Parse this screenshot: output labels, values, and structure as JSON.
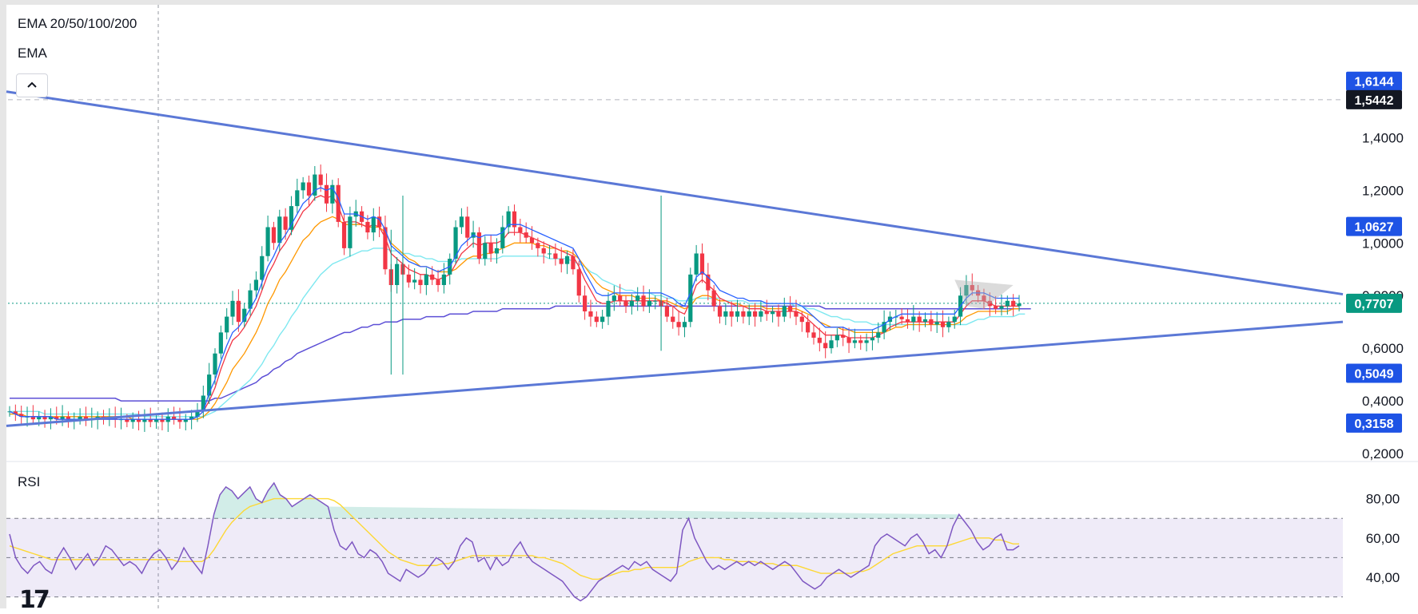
{
  "legend": {
    "indicator": "EMA 20/50/100/200",
    "sub": "EMA",
    "rsi": "RSI"
  },
  "icons": {
    "collapse": "chevron-up-icon",
    "logo": "tradingview-logo"
  },
  "colors": {
    "up": "#089981",
    "down": "#f23645",
    "ema20": "#2962ff",
    "ema50": "#f23645",
    "ema100": "#ff9800",
    "ema200a": "#7ee8f0",
    "ema200b": "#5c4fd6",
    "trendline": "#5b78d6",
    "rsi": "#7e57c2",
    "rsi_ma": "#fdd835"
  },
  "chart_data": [
    {
      "type": "candlestick",
      "title": "",
      "ylim": [
        0.2,
        1.65
      ],
      "yticks": [
        "1,4000",
        "1,2000",
        "1,0000",
        "0,8000",
        "0,6000",
        "0,4000",
        "0,2000"
      ],
      "ytick_values": [
        1.4,
        1.2,
        1.0,
        0.8,
        0.6,
        0.4,
        0.2
      ],
      "price_labels": [
        {
          "text": "1,6144",
          "value": 1.6144,
          "bg": "#1e53e5"
        },
        {
          "text": "1,5442",
          "value": 1.5442,
          "bg": "#131722"
        },
        {
          "text": "1,0627",
          "value": 1.0627,
          "bg": "#1e53e5"
        },
        {
          "text": "0,7707",
          "value": 0.7707,
          "bg": "#089981"
        },
        {
          "text": "0,5049",
          "value": 0.5049,
          "bg": "#1e53e5"
        },
        {
          "text": "0,3158",
          "value": 0.3158,
          "bg": "#1e53e5"
        }
      ],
      "close_series": [
        0.36,
        0.35,
        0.34,
        0.34,
        0.33,
        0.34,
        0.33,
        0.34,
        0.33,
        0.34,
        0.33,
        0.33,
        0.34,
        0.33,
        0.33,
        0.34,
        0.33,
        0.34,
        0.33,
        0.33,
        0.32,
        0.33,
        0.32,
        0.33,
        0.32,
        0.33,
        0.32,
        0.34,
        0.33,
        0.32,
        0.33,
        0.34,
        0.36,
        0.42,
        0.5,
        0.58,
        0.66,
        0.72,
        0.78,
        0.7,
        0.75,
        0.82,
        0.86,
        0.95,
        1.06,
        1.0,
        1.1,
        1.05,
        1.14,
        1.2,
        1.23,
        1.18,
        1.26,
        1.22,
        1.15,
        1.22,
        1.08,
        0.98,
        1.1,
        1.12,
        1.08,
        1.04,
        1.1,
        1.06,
        0.9,
        0.84,
        0.92,
        0.88,
        0.85,
        0.86,
        0.84,
        0.88,
        0.86,
        0.84,
        0.88,
        0.94,
        1.06,
        1.1,
        1.02,
        1.04,
        0.94,
        1.0,
        0.96,
        0.98,
        1.06,
        1.12,
        1.06,
        1.04,
        1.02,
        1.0,
        0.98,
        0.96,
        0.96,
        0.94,
        0.92,
        0.95,
        0.9,
        0.8,
        0.74,
        0.72,
        0.7,
        0.72,
        0.78,
        0.8,
        0.78,
        0.76,
        0.78,
        0.8,
        0.76,
        0.78,
        0.78,
        0.76,
        0.72,
        0.7,
        0.68,
        0.7,
        0.88,
        0.96,
        0.88,
        0.82,
        0.76,
        0.72,
        0.74,
        0.72,
        0.74,
        0.72,
        0.74,
        0.72,
        0.74,
        0.73,
        0.74,
        0.72,
        0.76,
        0.74,
        0.72,
        0.7,
        0.66,
        0.64,
        0.62,
        0.6,
        0.63,
        0.65,
        0.64,
        0.62,
        0.63,
        0.62,
        0.63,
        0.64,
        0.66,
        0.7,
        0.72,
        0.72,
        0.71,
        0.7,
        0.72,
        0.7,
        0.71,
        0.69,
        0.7,
        0.68,
        0.7,
        0.72,
        0.8,
        0.84,
        0.82,
        0.8,
        0.78,
        0.76,
        0.75,
        0.76,
        0.78,
        0.76,
        0.77
      ],
      "ema_fast": [
        0.36,
        0.35,
        0.34,
        0.34,
        0.34,
        0.34,
        0.34,
        0.34,
        0.33,
        0.33,
        0.33,
        0.33,
        0.33,
        0.33,
        0.33,
        0.33,
        0.33,
        0.33,
        0.33,
        0.33,
        0.33,
        0.33,
        0.33,
        0.33,
        0.33,
        0.33,
        0.33,
        0.33,
        0.33,
        0.33,
        0.33,
        0.33,
        0.34,
        0.36,
        0.4,
        0.45,
        0.52,
        0.58,
        0.63,
        0.65,
        0.68,
        0.72,
        0.76,
        0.82,
        0.88,
        0.92,
        0.97,
        1.0,
        1.04,
        1.08,
        1.12,
        1.14,
        1.17,
        1.18,
        1.17,
        1.18,
        1.14,
        1.08,
        1.08,
        1.08,
        1.07,
        1.06,
        1.07,
        1.06,
        1.02,
        0.96,
        0.94,
        0.92,
        0.9,
        0.89,
        0.88,
        0.88,
        0.87,
        0.86,
        0.87,
        0.88,
        0.92,
        0.96,
        0.98,
        1.0,
        0.99,
        1.0,
        1.0,
        1.0,
        1.01,
        1.04,
        1.04,
        1.04,
        1.03,
        1.02,
        1.01,
        1.0,
        0.99,
        0.98,
        0.97,
        0.96,
        0.95,
        0.91,
        0.86,
        0.82,
        0.78,
        0.77,
        0.77,
        0.78,
        0.78,
        0.78,
        0.78,
        0.78,
        0.78,
        0.78,
        0.78,
        0.78,
        0.77,
        0.76,
        0.74,
        0.73,
        0.78,
        0.84,
        0.86,
        0.84,
        0.82,
        0.79,
        0.78,
        0.77,
        0.76,
        0.76,
        0.75,
        0.75,
        0.75,
        0.74,
        0.74,
        0.74,
        0.74,
        0.74,
        0.74,
        0.73,
        0.71,
        0.69,
        0.67,
        0.65,
        0.65,
        0.65,
        0.65,
        0.64,
        0.64,
        0.64,
        0.64,
        0.64,
        0.65,
        0.66,
        0.68,
        0.69,
        0.7,
        0.7,
        0.7,
        0.7,
        0.7,
        0.7,
        0.7,
        0.7,
        0.7,
        0.7,
        0.73,
        0.76,
        0.78,
        0.78,
        0.78,
        0.77,
        0.76,
        0.76,
        0.76,
        0.76,
        0.76
      ],
      "ema_mid": [
        0.35,
        0.35,
        0.35,
        0.34,
        0.34,
        0.34,
        0.34,
        0.34,
        0.34,
        0.34,
        0.34,
        0.34,
        0.34,
        0.34,
        0.34,
        0.34,
        0.34,
        0.34,
        0.34,
        0.34,
        0.34,
        0.33,
        0.33,
        0.33,
        0.33,
        0.33,
        0.33,
        0.33,
        0.33,
        0.33,
        0.33,
        0.33,
        0.33,
        0.34,
        0.36,
        0.39,
        0.43,
        0.47,
        0.52,
        0.55,
        0.58,
        0.62,
        0.66,
        0.71,
        0.77,
        0.81,
        0.86,
        0.89,
        0.93,
        0.97,
        1.01,
        1.03,
        1.06,
        1.08,
        1.09,
        1.1,
        1.09,
        1.07,
        1.07,
        1.07,
        1.07,
        1.06,
        1.06,
        1.06,
        1.04,
        1.0,
        0.98,
        0.96,
        0.94,
        0.93,
        0.91,
        0.91,
        0.9,
        0.89,
        0.89,
        0.89,
        0.9,
        0.92,
        0.94,
        0.95,
        0.95,
        0.96,
        0.96,
        0.97,
        0.98,
        0.99,
        1.0,
        1.0,
        1.0,
        1.0,
        0.99,
        0.99,
        0.98,
        0.98,
        0.97,
        0.97,
        0.96,
        0.94,
        0.91,
        0.88,
        0.85,
        0.83,
        0.82,
        0.81,
        0.8,
        0.8,
        0.8,
        0.79,
        0.79,
        0.79,
        0.79,
        0.78,
        0.78,
        0.77,
        0.76,
        0.75,
        0.76,
        0.79,
        0.8,
        0.8,
        0.79,
        0.78,
        0.78,
        0.77,
        0.77,
        0.76,
        0.76,
        0.76,
        0.76,
        0.75,
        0.75,
        0.75,
        0.75,
        0.75,
        0.75,
        0.74,
        0.73,
        0.72,
        0.7,
        0.69,
        0.68,
        0.68,
        0.67,
        0.67,
        0.66,
        0.66,
        0.66,
        0.66,
        0.66,
        0.66,
        0.67,
        0.68,
        0.68,
        0.69,
        0.69,
        0.69,
        0.69,
        0.69,
        0.69,
        0.69,
        0.69,
        0.69,
        0.7,
        0.72,
        0.73,
        0.74,
        0.74,
        0.74,
        0.74,
        0.74,
        0.74,
        0.75,
        0.75
      ],
      "ema_slow": [
        0.36,
        0.36,
        0.36,
        0.36,
        0.36,
        0.36,
        0.35,
        0.35,
        0.35,
        0.35,
        0.35,
        0.35,
        0.35,
        0.35,
        0.35,
        0.35,
        0.35,
        0.35,
        0.35,
        0.35,
        0.35,
        0.35,
        0.35,
        0.34,
        0.34,
        0.34,
        0.34,
        0.34,
        0.34,
        0.34,
        0.34,
        0.34,
        0.34,
        0.34,
        0.35,
        0.36,
        0.38,
        0.4,
        0.42,
        0.44,
        0.46,
        0.48,
        0.51,
        0.54,
        0.58,
        0.61,
        0.65,
        0.68,
        0.72,
        0.75,
        0.79,
        0.82,
        0.85,
        0.88,
        0.9,
        0.92,
        0.93,
        0.94,
        0.95,
        0.96,
        0.97,
        0.97,
        0.98,
        0.98,
        0.98,
        0.97,
        0.97,
        0.96,
        0.96,
        0.95,
        0.95,
        0.94,
        0.94,
        0.93,
        0.93,
        0.93,
        0.93,
        0.94,
        0.94,
        0.94,
        0.94,
        0.94,
        0.94,
        0.94,
        0.95,
        0.95,
        0.95,
        0.95,
        0.95,
        0.95,
        0.95,
        0.95,
        0.94,
        0.94,
        0.94,
        0.94,
        0.93,
        0.92,
        0.91,
        0.89,
        0.88,
        0.86,
        0.85,
        0.84,
        0.83,
        0.82,
        0.82,
        0.81,
        0.81,
        0.81,
        0.8,
        0.8,
        0.79,
        0.79,
        0.78,
        0.78,
        0.78,
        0.79,
        0.79,
        0.79,
        0.79,
        0.79,
        0.78,
        0.78,
        0.78,
        0.78,
        0.77,
        0.77,
        0.77,
        0.77,
        0.77,
        0.77,
        0.77,
        0.77,
        0.76,
        0.76,
        0.75,
        0.75,
        0.74,
        0.73,
        0.72,
        0.72,
        0.71,
        0.71,
        0.7,
        0.7,
        0.7,
        0.69,
        0.69,
        0.69,
        0.69,
        0.69,
        0.69,
        0.69,
        0.69,
        0.69,
        0.69,
        0.69,
        0.69,
        0.69,
        0.69,
        0.69,
        0.69,
        0.69,
        0.7,
        0.71,
        0.71,
        0.72,
        0.72,
        0.72,
        0.72,
        0.72,
        0.73,
        0.73
      ],
      "ema_long": [
        0.41,
        0.41,
        0.41,
        0.41,
        0.41,
        0.41,
        0.41,
        0.41,
        0.41,
        0.41,
        0.41,
        0.41,
        0.41,
        0.41,
        0.41,
        0.41,
        0.41,
        0.41,
        0.41,
        0.4,
        0.4,
        0.4,
        0.4,
        0.4,
        0.4,
        0.4,
        0.4,
        0.4,
        0.4,
        0.4,
        0.4,
        0.4,
        0.4,
        0.4,
        0.4,
        0.41,
        0.41,
        0.42,
        0.43,
        0.44,
        0.45,
        0.46,
        0.47,
        0.49,
        0.5,
        0.52,
        0.53,
        0.55,
        0.56,
        0.58,
        0.59,
        0.6,
        0.61,
        0.62,
        0.63,
        0.64,
        0.65,
        0.66,
        0.66,
        0.67,
        0.68,
        0.68,
        0.69,
        0.69,
        0.7,
        0.7,
        0.7,
        0.71,
        0.71,
        0.71,
        0.71,
        0.72,
        0.72,
        0.72,
        0.72,
        0.73,
        0.73,
        0.73,
        0.73,
        0.74,
        0.74,
        0.74,
        0.74,
        0.74,
        0.75,
        0.75,
        0.75,
        0.75,
        0.75,
        0.75,
        0.75,
        0.75,
        0.75,
        0.76,
        0.76,
        0.76,
        0.76,
        0.76,
        0.76,
        0.76,
        0.76,
        0.76,
        0.76,
        0.76,
        0.76,
        0.76,
        0.76,
        0.76,
        0.76,
        0.76,
        0.76,
        0.76,
        0.76,
        0.76,
        0.76,
        0.76,
        0.76,
        0.76,
        0.76,
        0.76,
        0.76,
        0.76,
        0.76,
        0.76,
        0.76,
        0.76,
        0.76,
        0.76,
        0.76,
        0.76,
        0.76,
        0.76,
        0.76,
        0.76,
        0.76,
        0.76,
        0.76,
        0.76,
        0.76,
        0.75,
        0.75,
        0.75,
        0.75,
        0.75,
        0.75,
        0.75,
        0.75,
        0.75,
        0.75,
        0.75,
        0.75,
        0.75,
        0.75,
        0.75,
        0.75,
        0.75,
        0.75,
        0.75,
        0.75,
        0.75,
        0.75,
        0.75,
        0.75,
        0.75,
        0.75,
        0.75,
        0.75,
        0.75,
        0.75,
        0.75,
        0.75,
        0.75,
        0.75,
        0.75,
        0.75
      ],
      "trendlines": [
        {
          "name": "upper",
          "from": [
            0,
            1.575
          ],
          "to": [
            1,
            0.805
          ]
        },
        {
          "name": "lower",
          "from": [
            0,
            0.305
          ],
          "to": [
            1,
            0.7
          ]
        }
      ]
    },
    {
      "type": "line",
      "title": "RSI",
      "ylim": [
        27,
        90
      ],
      "yticks": [
        "80,00",
        "60,00",
        "40,00"
      ],
      "ytick_values": [
        80,
        60,
        40
      ],
      "band": [
        30,
        70
      ],
      "midline": 50,
      "rsi": [
        62,
        50,
        45,
        42,
        46,
        48,
        44,
        42,
        50,
        55,
        50,
        44,
        48,
        52,
        46,
        50,
        56,
        54,
        50,
        46,
        48,
        46,
        42,
        48,
        52,
        54,
        50,
        44,
        48,
        55,
        50,
        46,
        42,
        56,
        72,
        82,
        86,
        84,
        80,
        83,
        86,
        80,
        78,
        84,
        88,
        82,
        80,
        76,
        78,
        80,
        82,
        80,
        78,
        76,
        64,
        56,
        54,
        58,
        52,
        50,
        54,
        52,
        48,
        42,
        40,
        38,
        44,
        42,
        40,
        42,
        46,
        50,
        48,
        44,
        48,
        56,
        60,
        58,
        48,
        50,
        44,
        50,
        46,
        48,
        54,
        58,
        52,
        48,
        46,
        44,
        42,
        40,
        38,
        34,
        30,
        28,
        30,
        34,
        38,
        40,
        42,
        44,
        46,
        44,
        48,
        46,
        48,
        44,
        42,
        40,
        38,
        42,
        64,
        70,
        60,
        54,
        48,
        44,
        46,
        44,
        46,
        48,
        46,
        48,
        46,
        48,
        46,
        44,
        46,
        48,
        46,
        42,
        38,
        36,
        34,
        36,
        40,
        42,
        44,
        42,
        40,
        42,
        44,
        46,
        56,
        60,
        62,
        60,
        58,
        56,
        60,
        62,
        58,
        52,
        54,
        50,
        56,
        66,
        72,
        68,
        64,
        58,
        54,
        56,
        60,
        62,
        54,
        54,
        56
      ],
      "rsi_ma": [
        56,
        55,
        54,
        53,
        52,
        51,
        50,
        49,
        49,
        49,
        49,
        49,
        49,
        49,
        49,
        49,
        49,
        49,
        49,
        49,
        49,
        49,
        49,
        49,
        49,
        49,
        49,
        49,
        48,
        48,
        48,
        48,
        48,
        50,
        54,
        59,
        64,
        68,
        71,
        74,
        76,
        77,
        78,
        79,
        80,
        80,
        80,
        80,
        80,
        80,
        80,
        80,
        80,
        80,
        79,
        77,
        74,
        71,
        68,
        65,
        62,
        59,
        56,
        53,
        51,
        49,
        48,
        47,
        46,
        46,
        46,
        46,
        47,
        47,
        48,
        49,
        50,
        51,
        51,
        51,
        51,
        51,
        51,
        51,
        51,
        51,
        51,
        51,
        50,
        50,
        49,
        48,
        47,
        45,
        43,
        41,
        40,
        39,
        39,
        40,
        41,
        42,
        43,
        43,
        44,
        44,
        45,
        45,
        45,
        45,
        45,
        45,
        46,
        48,
        49,
        50,
        50,
        50,
        50,
        49,
        49,
        48,
        48,
        48,
        48,
        47,
        47,
        47,
        46,
        46,
        46,
        46,
        45,
        44,
        43,
        42,
        42,
        42,
        42,
        42,
        42,
        43,
        43,
        44,
        46,
        48,
        50,
        52,
        53,
        54,
        55,
        56,
        56,
        56,
        56,
        56,
        56,
        57,
        58,
        59,
        60,
        60,
        60,
        60,
        59,
        59,
        58,
        57,
        57
      ]
    }
  ]
}
